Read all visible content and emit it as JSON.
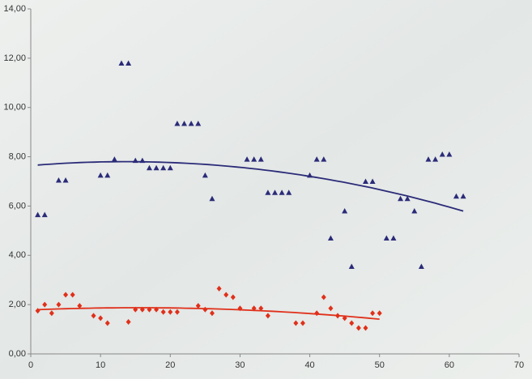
{
  "chart_data": {
    "type": "scatter",
    "xlim": [
      0,
      70
    ],
    "xticks": [
      0,
      10,
      20,
      30,
      40,
      50,
      60,
      70
    ],
    "ylim": [
      0,
      14
    ],
    "yticks": [
      {
        "value": 0,
        "label": "0,00"
      },
      {
        "value": 2,
        "label": "2,00"
      },
      {
        "value": 4,
        "label": "4,00"
      },
      {
        "value": 6,
        "label": "6,00"
      },
      {
        "value": 8,
        "label": "8,00"
      },
      {
        "value": 10,
        "label": "10,00"
      },
      {
        "value": 12,
        "label": "12,00"
      },
      {
        "value": 14,
        "label": "14,00"
      }
    ],
    "trendline": "poly2",
    "series": [
      {
        "marker": "triangle",
        "color": "#2b2b78",
        "x": [
          1,
          2,
          4,
          5,
          10,
          11,
          12,
          13,
          14,
          15,
          16,
          17,
          18,
          19,
          20,
          21,
          22,
          23,
          24,
          25,
          26,
          31,
          32,
          33,
          34,
          35,
          36,
          37,
          40,
          41,
          42,
          43,
          45,
          46,
          48,
          49,
          51,
          52,
          53,
          54,
          55,
          56,
          57,
          58,
          59,
          60,
          61,
          62
        ],
        "values": [
          5.65,
          5.65,
          7.05,
          7.05,
          7.25,
          7.25,
          7.9,
          11.8,
          11.8,
          7.85,
          7.85,
          7.55,
          7.55,
          7.55,
          7.55,
          9.35,
          9.35,
          9.35,
          9.35,
          7.25,
          6.3,
          7.9,
          7.9,
          7.9,
          6.55,
          6.55,
          6.55,
          6.55,
          7.25,
          7.9,
          7.9,
          4.7,
          5.8,
          3.55,
          7.0,
          7.0,
          4.7,
          4.7,
          6.3,
          6.3,
          5.8,
          3.55,
          7.9,
          7.9,
          8.1,
          8.1,
          6.4,
          6.4
        ]
      },
      {
        "marker": "diamond",
        "color": "#e0301a",
        "x": [
          1,
          2,
          3,
          4,
          5,
          6,
          7,
          9,
          10,
          11,
          14,
          15,
          16,
          17,
          18,
          19,
          20,
          21,
          24,
          25,
          26,
          27,
          28,
          29,
          30,
          32,
          33,
          34,
          38,
          39,
          41,
          42,
          43,
          44,
          45,
          46,
          47,
          48,
          49,
          50
        ],
        "values": [
          1.75,
          2.0,
          1.65,
          2.0,
          2.4,
          2.4,
          1.95,
          1.55,
          1.45,
          1.25,
          1.3,
          1.8,
          1.8,
          1.8,
          1.8,
          1.7,
          1.7,
          1.7,
          1.95,
          1.8,
          1.65,
          2.65,
          2.4,
          2.3,
          1.85,
          1.85,
          1.85,
          1.55,
          1.25,
          1.25,
          1.65,
          2.3,
          1.85,
          1.55,
          1.45,
          1.25,
          1.05,
          1.05,
          1.65,
          1.65
        ]
      }
    ]
  }
}
